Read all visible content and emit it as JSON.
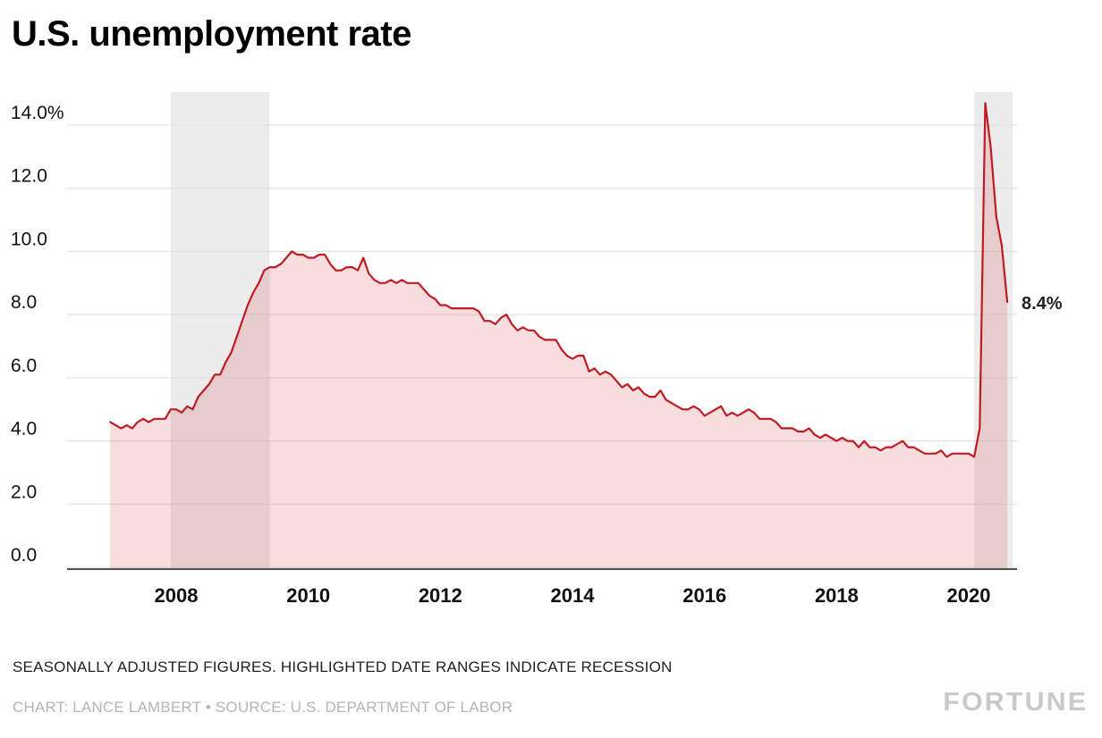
{
  "title": "U.S. unemployment rate",
  "footer": {
    "note": "SEASONALLY ADJUSTED FIGURES. HIGHLIGHTED DATE RANGES INDICATE RECESSION",
    "credit": "CHART: LANCE LAMBERT • SOURCE: U.S. DEPARTMENT OF LABOR",
    "brand": "FORTUNE"
  },
  "chart_data": {
    "type": "area",
    "title": "U.S. unemployment rate",
    "unit": "percent",
    "start_month": "2007-01",
    "end_month": "2020-08",
    "values": [
      4.6,
      4.5,
      4.4,
      4.5,
      4.4,
      4.6,
      4.7,
      4.6,
      4.7,
      4.7,
      4.7,
      5.0,
      5.0,
      4.9,
      5.1,
      5.0,
      5.4,
      5.6,
      5.8,
      6.1,
      6.1,
      6.5,
      6.8,
      7.3,
      7.8,
      8.3,
      8.7,
      9.0,
      9.4,
      9.5,
      9.5,
      9.6,
      9.8,
      10.0,
      9.9,
      9.9,
      9.8,
      9.8,
      9.9,
      9.9,
      9.6,
      9.4,
      9.4,
      9.5,
      9.5,
      9.4,
      9.8,
      9.3,
      9.1,
      9.0,
      9.0,
      9.1,
      9.0,
      9.1,
      9.0,
      9.0,
      9.0,
      8.8,
      8.6,
      8.5,
      8.3,
      8.3,
      8.2,
      8.2,
      8.2,
      8.2,
      8.2,
      8.1,
      7.8,
      7.8,
      7.7,
      7.9,
      8.0,
      7.7,
      7.5,
      7.6,
      7.5,
      7.5,
      7.3,
      7.2,
      7.2,
      7.2,
      6.9,
      6.7,
      6.6,
      6.7,
      6.7,
      6.2,
      6.3,
      6.1,
      6.2,
      6.1,
      5.9,
      5.7,
      5.8,
      5.6,
      5.7,
      5.5,
      5.4,
      5.4,
      5.6,
      5.3,
      5.2,
      5.1,
      5.0,
      5.0,
      5.1,
      5.0,
      4.8,
      4.9,
      5.0,
      5.1,
      4.8,
      4.9,
      4.8,
      4.9,
      5.0,
      4.9,
      4.7,
      4.7,
      4.7,
      4.6,
      4.4,
      4.4,
      4.4,
      4.3,
      4.3,
      4.4,
      4.2,
      4.1,
      4.2,
      4.1,
      4.0,
      4.1,
      4.0,
      4.0,
      3.8,
      4.0,
      3.8,
      3.8,
      3.7,
      3.8,
      3.8,
      3.9,
      4.0,
      3.8,
      3.8,
      3.7,
      3.6,
      3.6,
      3.6,
      3.7,
      3.5,
      3.6,
      3.6,
      3.6,
      3.6,
      3.5,
      4.4,
      14.7,
      13.3,
      11.1,
      10.2,
      8.4
    ],
    "ylim": [
      0,
      15
    ],
    "yticks": [
      0,
      2,
      4,
      6,
      8,
      10,
      12,
      14
    ],
    "ytick_labels": [
      "0.0",
      "2.0",
      "4.0",
      "6.0",
      "8.0",
      "10.0",
      "12.0",
      "14.0%"
    ],
    "xticks": [
      2008,
      2010,
      2012,
      2014,
      2016,
      2018,
      2020
    ],
    "recessions": [
      {
        "start": "2007-12",
        "end": "2009-06"
      },
      {
        "start": "2020-02",
        "end": "2020-09"
      }
    ],
    "end_label": "8.4%",
    "grid": true,
    "legend": "none",
    "colors": {
      "line": "#c01b22",
      "fill": "rgba(198,24,32,0.15)",
      "recession": "#ececec",
      "grid": "#dcdcdc",
      "axis": "#1a1a1a",
      "tick_text": "#111111",
      "end_label_text": "#222222"
    }
  }
}
